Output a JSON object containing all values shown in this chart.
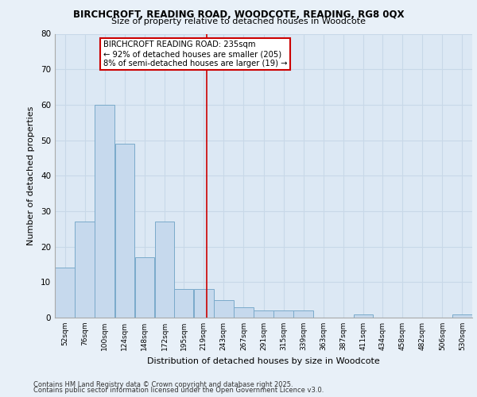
{
  "title_line1": "BIRCHCROFT, READING ROAD, WOODCOTE, READING, RG8 0QX",
  "title_line2": "Size of property relative to detached houses in Woodcote",
  "xlabel": "Distribution of detached houses by size in Woodcote",
  "ylabel": "Number of detached properties",
  "footer_line1": "Contains HM Land Registry data © Crown copyright and database right 2025.",
  "footer_line2": "Contains public sector information licensed under the Open Government Licence v3.0.",
  "annotation_title": "BIRCHCROFT READING ROAD: 235sqm",
  "annotation_line2": "← 92% of detached houses are smaller (205)",
  "annotation_line3": "8% of semi-detached houses are larger (19) →",
  "marker_value": 235,
  "bin_edges": [
    52,
    76,
    100,
    124,
    148,
    172,
    195,
    219,
    243,
    267,
    291,
    315,
    339,
    363,
    387,
    411,
    434,
    458,
    482,
    506,
    530,
    554
  ],
  "bar_heights": [
    14,
    27,
    60,
    49,
    17,
    27,
    8,
    8,
    5,
    3,
    2,
    2,
    2,
    0,
    0,
    1,
    0,
    0,
    0,
    0,
    1
  ],
  "bar_color": "#c6d9ed",
  "bar_edge_color": "#7aaaca",
  "grid_color": "#c8d8e8",
  "bg_color": "#dce8f4",
  "fig_bg_color": "#e8f0f8",
  "annotation_box_facecolor": "#ffffff",
  "annotation_box_edgecolor": "#cc0000",
  "marker_line_color": "#cc0000",
  "ylim": [
    0,
    80
  ],
  "yticks": [
    0,
    10,
    20,
    30,
    40,
    50,
    60,
    70,
    80
  ],
  "tick_labels": [
    "52sqm",
    "76sqm",
    "100sqm",
    "124sqm",
    "148sqm",
    "172sqm",
    "195sqm",
    "219sqm",
    "243sqm",
    "267sqm",
    "291sqm",
    "315sqm",
    "339sqm",
    "363sqm",
    "387sqm",
    "411sqm",
    "434sqm",
    "458sqm",
    "482sqm",
    "506sqm",
    "530sqm"
  ]
}
